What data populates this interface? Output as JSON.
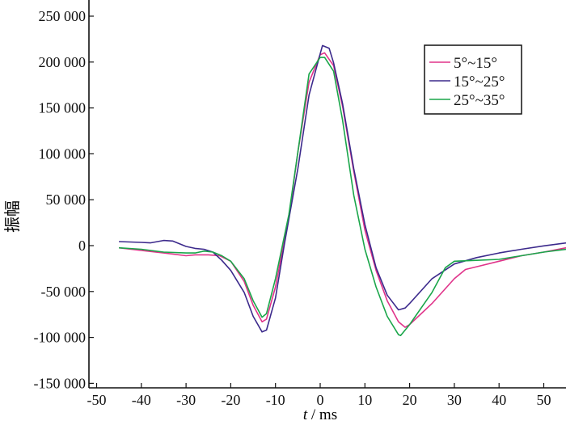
{
  "chart_data": {
    "type": "line",
    "title": "",
    "xlabel_italic": "t",
    "xlabel_rest": " / ms",
    "ylabel": "振幅",
    "xlim": [
      -50,
      55
    ],
    "ylim": [
      -150000,
      250000
    ],
    "xticks": [
      -50,
      -40,
      -30,
      -20,
      -10,
      0,
      10,
      20,
      30,
      40,
      50
    ],
    "yticks": [
      250000,
      200000,
      150000,
      100000,
      50000,
      0,
      -50000,
      -100000,
      -150000
    ],
    "ytick_labels": [
      "250 000",
      "200 000",
      "150 000",
      "100 000",
      "50 000",
      "0",
      "-50 000",
      "-100 000",
      "-150 000"
    ],
    "grid": false,
    "legend_position": "top-right",
    "series": [
      {
        "name": "5°~15°",
        "color": "#e0338a",
        "x": [
          -45,
          -40,
          -35,
          -30,
          -28,
          -25,
          -22.5,
          -20,
          -17,
          -15,
          -13,
          -12,
          -10,
          -7,
          -5,
          -2.5,
          0,
          1,
          3,
          5,
          7.5,
          10,
          12.5,
          15,
          17.5,
          19,
          20,
          25,
          30,
          32.5,
          35,
          40,
          45,
          50,
          55
        ],
        "y": [
          -2400,
          -5300,
          -8000,
          -11000,
          -10000,
          -10000,
          -11000,
          -17000,
          -39000,
          -65000,
          -83000,
          -80000,
          -45000,
          31000,
          102000,
          178000,
          208000,
          210000,
          196000,
          152000,
          81000,
          17000,
          -27000,
          -60000,
          -83000,
          -89000,
          -86000,
          -63000,
          -36000,
          -26000,
          -23000,
          -17000,
          -11000,
          -7000,
          -2400
        ]
      },
      {
        "name": "15°~25°",
        "color": "#3c2a8c",
        "x": [
          -45,
          -40,
          -38,
          -35,
          -33,
          -30,
          -28,
          -26,
          -24,
          -22,
          -20,
          -17,
          -15,
          -13,
          -12,
          -10,
          -8,
          -5,
          -2.5,
          0,
          0.5,
          2,
          3,
          5,
          7.5,
          10,
          12.5,
          15,
          17.5,
          19,
          20,
          25,
          30,
          35,
          40,
          45,
          50,
          55
        ],
        "y": [
          4400,
          3500,
          3000,
          5600,
          5000,
          -900,
          -3000,
          -4000,
          -7000,
          -16000,
          -27000,
          -51000,
          -77000,
          -94000,
          -92000,
          -57000,
          2000,
          84000,
          164000,
          209000,
          218000,
          215000,
          199000,
          155000,
          84000,
          23000,
          -24000,
          -54000,
          -70000,
          -68000,
          -63000,
          -36000,
          -20000,
          -13000,
          -8000,
          -4000,
          -300,
          2900
        ]
      },
      {
        "name": "25°~35°",
        "color": "#1aa64a",
        "x": [
          -45,
          -40,
          -35,
          -30,
          -28,
          -26,
          -24,
          -22,
          -20,
          -17,
          -15,
          -13,
          -12,
          -10,
          -7,
          -5,
          -2.5,
          0,
          1,
          3,
          5,
          7.5,
          10,
          12.5,
          15,
          17.5,
          18,
          20,
          25,
          28,
          30,
          35,
          40,
          45,
          50,
          55
        ],
        "y": [
          -2400,
          -4000,
          -7000,
          -8000,
          -8000,
          -6000,
          -7000,
          -11000,
          -17000,
          -36000,
          -60000,
          -78000,
          -74000,
          -36000,
          34000,
          102000,
          187000,
          205000,
          205000,
          190000,
          137000,
          55000,
          -4000,
          -45000,
          -77000,
          -97000,
          -98000,
          -86000,
          -51000,
          -24000,
          -17000,
          -16000,
          -15000,
          -11000,
          -7000,
          -4000
        ]
      }
    ]
  }
}
